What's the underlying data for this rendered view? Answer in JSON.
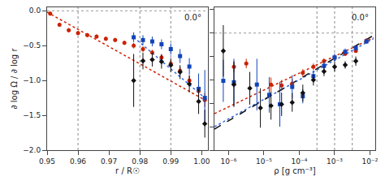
{
  "chart_data": [
    {
      "type": "scatter",
      "title": "0.0°",
      "x_label": "r / R☉",
      "y_label": "∂ log Ω / ∂ log r",
      "xlim": [
        0.95,
        1.002
      ],
      "ylim": [
        -2.0,
        0.05
      ],
      "xticks": [
        0.95,
        0.96,
        0.97,
        0.98,
        0.99,
        {
          "value": 1.0,
          "label": "1.00"
        }
      ],
      "yticks": [
        {
          "value": 0.0,
          "label": "0.0"
        },
        {
          "value": -0.5,
          "label": "−0.5"
        },
        {
          "value": -1.0,
          "label": "−1.0"
        },
        {
          "value": -1.5,
          "label": "−1.5"
        },
        {
          "value": -2.0,
          "label": "−2.0"
        }
      ],
      "grid": false,
      "hline": {
        "value": 0.0,
        "color": "#999999",
        "line_style": "dotted"
      },
      "vlines": {
        "values": [
          0.96,
          0.98,
          0.99
        ],
        "color": "#888888",
        "line_style": "dotted"
      },
      "series": [
        {
          "type": "line",
          "line_style": "dotted",
          "color": "#CC2200",
          "x": [
            0.95,
            1.001
          ],
          "values": [
            -0.02,
            -1.28
          ]
        },
        {
          "type": "line",
          "line_style": "dotted",
          "color": "#3366DD",
          "x": [
            0.978,
            1.001
          ],
          "values": [
            -0.38,
            -1.25
          ]
        },
        {
          "type": "scatter",
          "marker": "circle",
          "color": "#CC2200",
          "x": [
            0.951,
            0.954,
            0.957,
            0.96,
            0.963,
            0.966,
            0.969,
            0.972,
            0.975,
            0.978,
            0.981,
            0.984,
            0.987,
            0.99,
            0.993,
            0.996,
            0.999,
            1.001
          ],
          "values": [
            -0.04,
            -0.2,
            -0.28,
            -0.32,
            -0.35,
            -0.37,
            -0.4,
            -0.42,
            -0.46,
            -0.5,
            -0.55,
            -0.6,
            -0.67,
            -0.76,
            -0.86,
            -1.0,
            -1.15,
            -1.28
          ],
          "errors": [
            0.03,
            0.03,
            0.03,
            0.03,
            0.03,
            0.03,
            0.03,
            0.03,
            0.03,
            0.04,
            0.04,
            0.04,
            0.05,
            0.05,
            0.06,
            0.07,
            0.08,
            0.1
          ]
        },
        {
          "type": "scatter",
          "marker": "square",
          "color": "#1144BB",
          "x": [
            0.978,
            0.981,
            0.984,
            0.987,
            0.99,
            0.993,
            0.996,
            0.999,
            1.001
          ],
          "values": [
            -0.38,
            -0.42,
            -0.44,
            -0.48,
            -0.55,
            -0.65,
            -0.8,
            -1.12,
            -1.25
          ],
          "errors": [
            0.07,
            0.07,
            0.07,
            0.07,
            0.08,
            0.1,
            0.12,
            0.22,
            0.4
          ]
        },
        {
          "type": "scatter",
          "marker": "diamond",
          "color": "#111111",
          "x": [
            0.978,
            0.981,
            0.984,
            0.987,
            0.99,
            0.993,
            0.996,
            0.999,
            1.001
          ],
          "values": [
            -1.0,
            -0.72,
            -0.7,
            -0.73,
            -0.78,
            -0.88,
            -1.05,
            -1.3,
            -1.62
          ],
          "errors": [
            0.38,
            0.12,
            0.1,
            0.1,
            0.1,
            0.1,
            0.12,
            0.18,
            0.2
          ]
        }
      ]
    },
    {
      "type": "scatter",
      "title": "0.0°",
      "x_label": "ρ [g cm⁻³]",
      "log": "x",
      "tick_labels": "x",
      "xlim": [
        3.9810717e-07,
        0.014125375
      ],
      "ylim": [
        -2.5,
        0.55
      ],
      "xticks": [
        {
          "value": 1e-06,
          "label": "10⁻⁶"
        },
        {
          "value": 1e-05,
          "label": "10⁻⁵"
        },
        {
          "value": 0.0001,
          "label": "10⁻⁴"
        },
        {
          "value": 0.001,
          "label": "10⁻³"
        },
        {
          "value": 0.01,
          "label": "10⁻²"
        }
      ],
      "yticks": [
        0.5,
        0.0,
        -0.5,
        -1.0,
        -1.5,
        -2.0,
        -2.5
      ],
      "grid": false,
      "hline": {
        "value": 0.0,
        "color": "#999999",
        "line_style": "dotted"
      },
      "vlines": {
        "values": [
          0.00031622777,
          0.001,
          0.0031622777
        ],
        "color": "#888888",
        "line_style": "dotted"
      },
      "series": [
        {
          "type": "line",
          "line_style": "dotted",
          "color": "#CC2200",
          "x": [
            3.9810717e-07,
            0.012589254
          ],
          "values": [
            -1.72,
            -0.1
          ]
        },
        {
          "type": "line",
          "line_style": "dotted",
          "color": "#3366DD",
          "x": [
            3.9810717e-07,
            0.012589254
          ],
          "values": [
            -2.0,
            -0.12
          ]
        },
        {
          "type": "line",
          "line_style": "dashed",
          "color": "#111111",
          "x": [
            3.9810717e-07,
            0.012589254
          ],
          "values": [
            -2.05,
            -0.05
          ]
        },
        {
          "type": "scatter",
          "marker": "circle",
          "color": "#CC2200",
          "x": [
            1.4125375e-06,
            3.1622777e-06,
            1.5848932e-05,
            3.1622777e-05,
            6.3095734e-05,
            0.00012589254,
            0.00025118864,
            0.00050118723,
            0.001,
            0.0019952623,
            0.0039810717,
            0.0079432823
          ],
          "values": [
            -0.72,
            -0.65,
            -1.1,
            -1.12,
            -1.08,
            -0.85,
            -0.72,
            -0.6,
            -0.52,
            -0.44,
            -0.38,
            -0.16
          ],
          "errors": [
            0.12,
            0.1,
            0.15,
            0.12,
            0.1,
            0.08,
            0.07,
            0.06,
            0.05,
            0.05,
            0.04,
            0.04
          ]
        },
        {
          "type": "scatter",
          "marker": "square",
          "color": "#1144BB",
          "x": [
            7.0794578e-07,
            1.4125375e-06,
            6.3095734e-06,
            1.4125375e-05,
            2.8183829e-05,
            6.3095734e-05,
            0.00012589254,
            0.00025118864,
            0.00050118723,
            0.001,
            0.0019952623,
            0.0039810717,
            0.0079432823
          ],
          "values": [
            -1.02,
            -1.05,
            -1.1,
            -1.32,
            -1.52,
            -1.15,
            -1.35,
            -0.92,
            -0.7,
            -0.52,
            -0.4,
            -0.32,
            -0.18
          ],
          "errors": [
            0.45,
            0.5,
            0.55,
            0.38,
            0.48,
            0.25,
            0.15,
            0.12,
            0.1,
            0.08,
            0.07,
            0.06,
            0.05
          ]
        },
        {
          "type": "scatter",
          "marker": "diamond",
          "color": "#111111",
          "x": [
            7.0794578e-07,
            1.4125375e-06,
            3.9810717e-06,
            7.9432823e-06,
            1.5848932e-05,
            3.1622777e-05,
            6.3095734e-05,
            0.00012589254,
            0.00025118864,
            0.00050118723,
            0.001,
            0.0019952623,
            0.0039810717
          ],
          "values": [
            -0.38,
            -1.1,
            -1.18,
            -1.6,
            -1.55,
            -1.52,
            -1.48,
            -1.28,
            -1.0,
            -0.82,
            -0.72,
            -0.68,
            -0.6
          ],
          "errors": [
            0.55,
            0.48,
            0.35,
            0.42,
            0.3,
            0.25,
            0.2,
            0.18,
            0.12,
            0.1,
            0.1,
            0.08,
            0.1
          ]
        }
      ]
    }
  ]
}
